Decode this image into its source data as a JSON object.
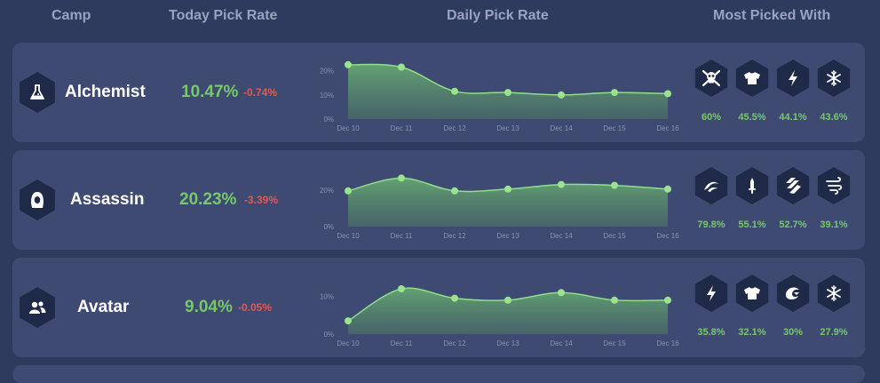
{
  "header": {
    "camp": "Camp",
    "today": "Today Pick Rate",
    "daily": "Daily Pick Rate",
    "most": "Most Picked With"
  },
  "colors": {
    "accent_green": "#76c96b",
    "negative_red": "#e5574f",
    "card": "#3e4a72",
    "hex": "#1f2a48"
  },
  "dates": [
    "Dec 10",
    "Dec 11",
    "Dec 12",
    "Dec 13",
    "Dec 14",
    "Dec 15",
    "Dec 16"
  ],
  "camps": [
    {
      "name": "Alchemist",
      "icon": "flask-icon",
      "today_rate": "10.47%",
      "change": "-0.74%",
      "chart_data": {
        "type": "area",
        "x": [
          "Dec 10",
          "Dec 11",
          "Dec 12",
          "Dec 13",
          "Dec 14",
          "Dec 15",
          "Dec 16"
        ],
        "y_ticks": [
          "0%",
          "10%",
          "20%"
        ],
        "ylim": [
          0,
          25
        ],
        "values": [
          22.5,
          21.5,
          11.5,
          11.0,
          10.0,
          11.0,
          10.5
        ]
      },
      "most_picked": [
        {
          "icon": "skull-crossbones-icon",
          "pct": "60%"
        },
        {
          "icon": "shirt-icon",
          "pct": "45.5%"
        },
        {
          "icon": "lightning-icon",
          "pct": "44.1%"
        },
        {
          "icon": "snowflake-icon",
          "pct": "43.6%"
        }
      ]
    },
    {
      "name": "Assassin",
      "icon": "hooded-figure-icon",
      "today_rate": "20.23%",
      "change": "-3.39%",
      "chart_data": {
        "type": "area",
        "x": [
          "Dec 10",
          "Dec 11",
          "Dec 12",
          "Dec 13",
          "Dec 14",
          "Dec 15",
          "Dec 16"
        ],
        "y_ticks": [
          "0%",
          "20%"
        ],
        "ylim": [
          0,
          33
        ],
        "values": [
          19.5,
          26.5,
          19.5,
          20.5,
          23.0,
          22.5,
          20.5
        ]
      },
      "most_picked": [
        {
          "icon": "swoosh-icon",
          "pct": "79.8%"
        },
        {
          "icon": "dagger-icon",
          "pct": "55.1%"
        },
        {
          "icon": "wind-stripes-icon",
          "pct": "52.7%"
        },
        {
          "icon": "whirlwind-icon",
          "pct": "39.1%"
        }
      ]
    },
    {
      "name": "Avatar",
      "icon": "users-icon",
      "today_rate": "9.04%",
      "change": "-0.05%",
      "chart_data": {
        "type": "area",
        "x": [
          "Dec 10",
          "Dec 11",
          "Dec 12",
          "Dec 13",
          "Dec 14",
          "Dec 15",
          "Dec 16"
        ],
        "y_ticks": [
          "0%",
          "10%"
        ],
        "ylim": [
          0,
          16
        ],
        "values": [
          3.5,
          12.0,
          9.5,
          9.0,
          11.0,
          9.0,
          9.0
        ]
      },
      "most_picked": [
        {
          "icon": "lightning-icon",
          "pct": "35.8%"
        },
        {
          "icon": "shirt-icon",
          "pct": "32.1%"
        },
        {
          "icon": "wave-icon",
          "pct": "30%"
        },
        {
          "icon": "snowflake-icon",
          "pct": "27.9%"
        }
      ]
    }
  ]
}
